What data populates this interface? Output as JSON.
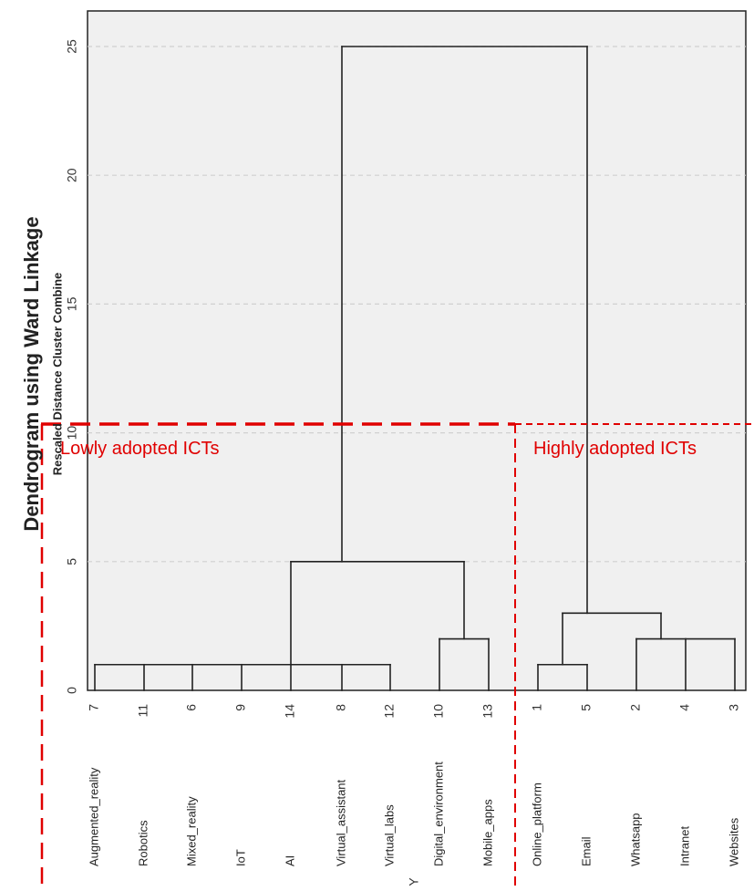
{
  "chart_data": {
    "type": "dendrogram",
    "title": "Dendrogram using Ward Linkage",
    "ylabel": "Rescaled Distance Cluster Combine",
    "xlabel": "Y",
    "ylim": [
      0,
      25
    ],
    "yticks": [
      0,
      5,
      10,
      15,
      20,
      25
    ],
    "grid": true,
    "leaves": [
      {
        "case": "7",
        "label": "Augmented_reality"
      },
      {
        "case": "11",
        "label": "Robotics"
      },
      {
        "case": "6",
        "label": "Mixed_reality"
      },
      {
        "case": "9",
        "label": "IoT"
      },
      {
        "case": "14",
        "label": "AI"
      },
      {
        "case": "8",
        "label": "Virtual_assistant"
      },
      {
        "case": "12",
        "label": "Virtual_labs"
      },
      {
        "case": "10",
        "label": "Digital_environment"
      },
      {
        "case": "13",
        "label": "Mobile_apps"
      },
      {
        "case": "1",
        "label": "Online_platform"
      },
      {
        "case": "5",
        "label": "Email"
      },
      {
        "case": "2",
        "label": "Whatsapp"
      },
      {
        "case": "4",
        "label": "Intranet"
      },
      {
        "case": "3",
        "label": "Websites"
      }
    ],
    "merges": [
      {
        "members": [
          "7",
          "11",
          "6",
          "9",
          "14",
          "8",
          "12"
        ],
        "height": 1
      },
      {
        "members": [
          "10",
          "13"
        ],
        "height": 2
      },
      {
        "members": [
          "1",
          "5"
        ],
        "height": 1
      },
      {
        "members": [
          "2",
          "4",
          "3"
        ],
        "height": 2
      },
      {
        "members": [
          "Cluster(7..12)",
          "Cluster(10,13)"
        ],
        "height": 5
      },
      {
        "members": [
          "Cluster(1,5)",
          "Cluster(2,4,3)"
        ],
        "height": 3
      },
      {
        "members": [
          "Left group",
          "Right group"
        ],
        "height": 25
      }
    ],
    "annotations": [
      {
        "text": "Lowly adopted ICTs",
        "color": "#e00000"
      },
      {
        "text": "Highly adopted ICTs",
        "color": "#e00000"
      }
    ],
    "cut_height": 10.3
  },
  "colors": {
    "plot_bg": "#f0f0f0",
    "grid": "#d0d0d0",
    "line": "#222222",
    "annotation": "#e00000"
  }
}
